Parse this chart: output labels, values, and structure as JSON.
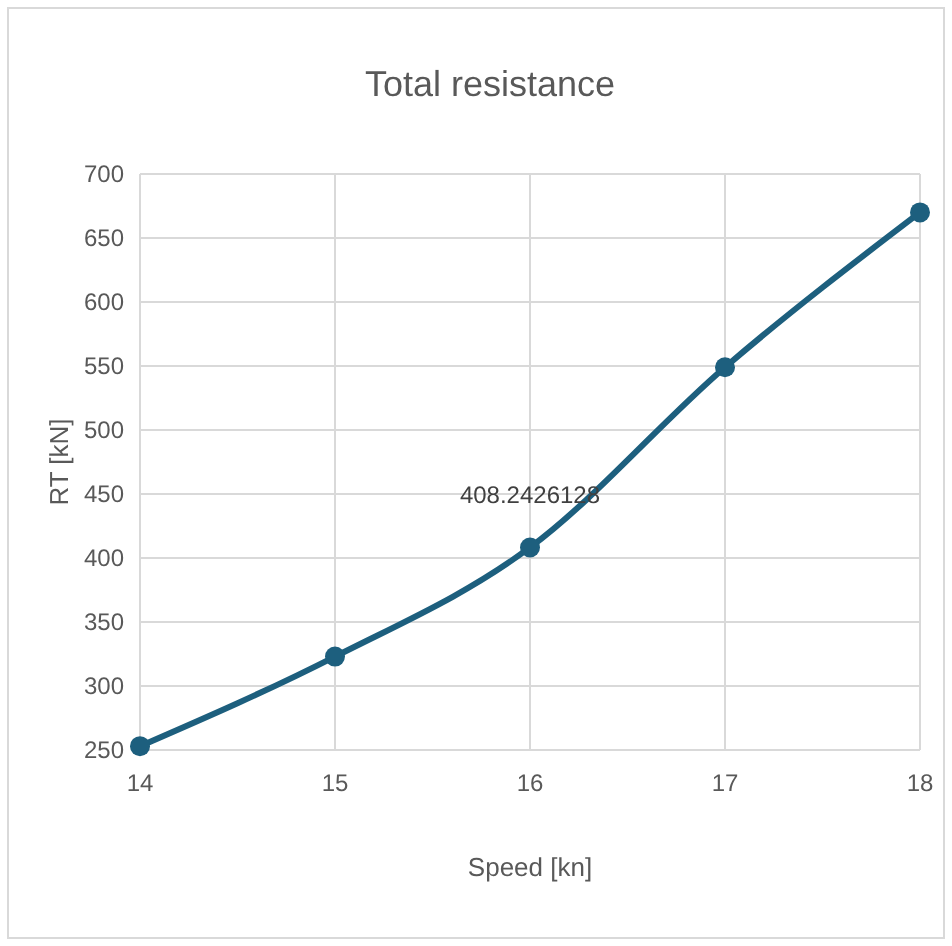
{
  "chart_data": {
    "type": "line",
    "title": "Total resistance",
    "xlabel": "Speed [kn]",
    "ylabel": "RT [kN]",
    "x": [
      14,
      15,
      16,
      17,
      18
    ],
    "series": [
      {
        "color": "#1d5f7e",
        "values": [
          253,
          323,
          408.2426128,
          549,
          670
        ],
        "value_labels": [
          null,
          null,
          "408.2426128",
          null,
          null
        ]
      }
    ],
    "xlim": [
      14,
      18
    ],
    "xticks": [
      14,
      15,
      16,
      17,
      18
    ],
    "ylim": [
      250,
      700
    ],
    "yticks": [
      250,
      300,
      350,
      400,
      450,
      500,
      550,
      600,
      650,
      700
    ],
    "grid": true,
    "marker": "circle",
    "line_style": "solid"
  }
}
